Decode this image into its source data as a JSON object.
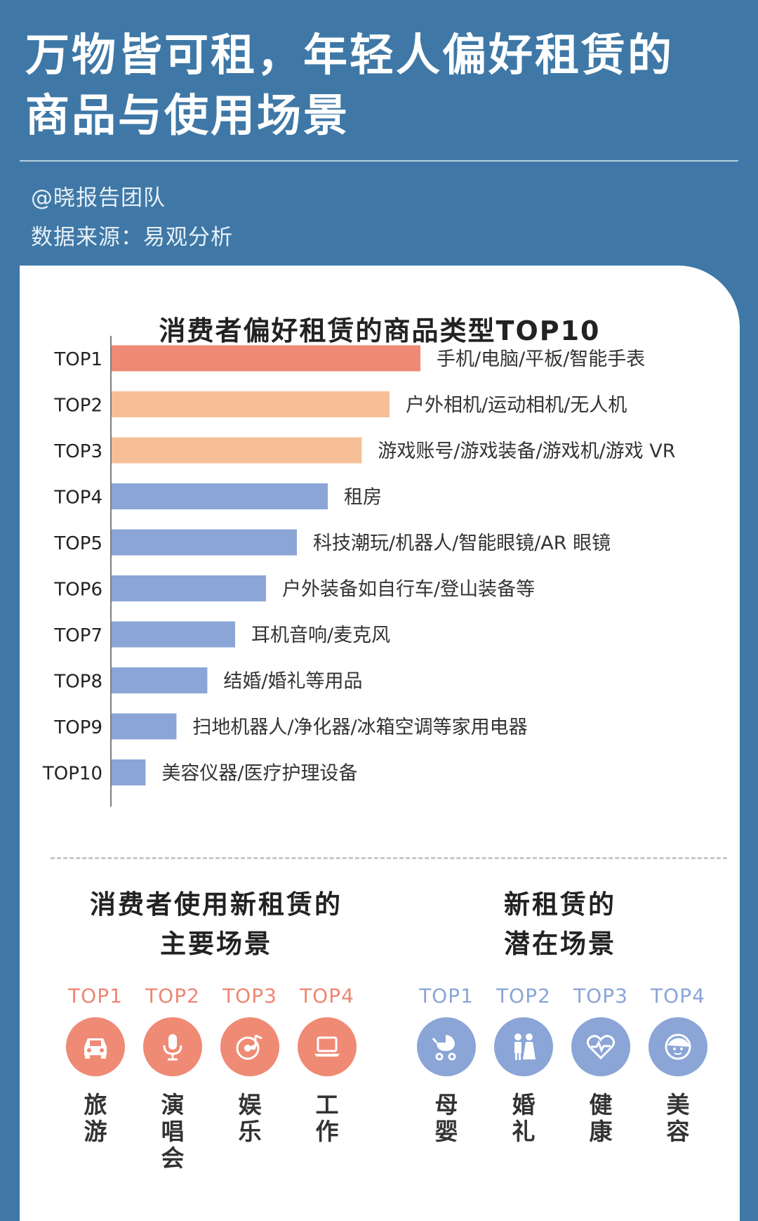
{
  "header": {
    "title_line1": "万物皆可租，年轻人偏好租赁的",
    "title_line2": "商品与使用场景",
    "author": "@晓报告团队",
    "source": "数据来源：易观分析"
  },
  "colors": {
    "background": "#3f78a6",
    "top1": "#ef8a75",
    "top2_3": "#f6bf97",
    "rest": "#8aa5d6"
  },
  "chart_data": {
    "type": "bar",
    "orientation": "horizontal",
    "title": "消费者偏好租赁的商品类型TOP10",
    "xlabel": "",
    "ylabel": "",
    "categories": [
      "TOP1",
      "TOP2",
      "TOP3",
      "TOP4",
      "TOP5",
      "TOP6",
      "TOP7",
      "TOP8",
      "TOP9",
      "TOP10"
    ],
    "labels": [
      "手机/电脑/平板/智能手表",
      "户外相机/运动相机/无人机",
      "游戏账号/游戏装备/游戏机/游戏 VR",
      "租房",
      "科技潮玩/机器人/智能眼镜/AR 眼镜",
      "户外装备如自行车/登山装备等",
      "耳机音响/麦克风",
      "结婚/婚礼等用品",
      "扫地机器人/净化器/冰箱空调等家用电器",
      "美容仪器/医疗护理设备"
    ],
    "values": [
      10,
      9,
      8.1,
      7,
      6,
      5,
      4,
      3.1,
      2.1,
      1.1
    ],
    "bar_colors": [
      "#ef8a75",
      "#f6bf97",
      "#f6bf97",
      "#8aa5d6",
      "#8aa5d6",
      "#8aa5d6",
      "#8aa5d6",
      "#8aa5d6",
      "#8aa5d6",
      "#8aa5d6"
    ],
    "xlim": [
      0,
      10
    ],
    "grid": false
  },
  "scenes": {
    "main_title_line1": "消费者使用新租赁的",
    "main_title_line2": "主要场景",
    "potential_title_line1": "新租赁的",
    "potential_title_line2": "潜在场景",
    "main": [
      {
        "rank": "TOP1",
        "label": "旅游",
        "icon": "car-icon"
      },
      {
        "rank": "TOP2",
        "label": "演唱会",
        "icon": "microphone-icon"
      },
      {
        "rank": "TOP3",
        "label": "娱乐",
        "icon": "music-disc-icon"
      },
      {
        "rank": "TOP4",
        "label": "工作",
        "icon": "laptop-icon"
      }
    ],
    "potential": [
      {
        "rank": "TOP1",
        "label": "母婴",
        "icon": "stroller-icon"
      },
      {
        "rank": "TOP2",
        "label": "婚礼",
        "icon": "couple-icon"
      },
      {
        "rank": "TOP3",
        "label": "健康",
        "icon": "heart-pulse-icon"
      },
      {
        "rank": "TOP4",
        "label": "美容",
        "icon": "face-icon"
      }
    ]
  }
}
